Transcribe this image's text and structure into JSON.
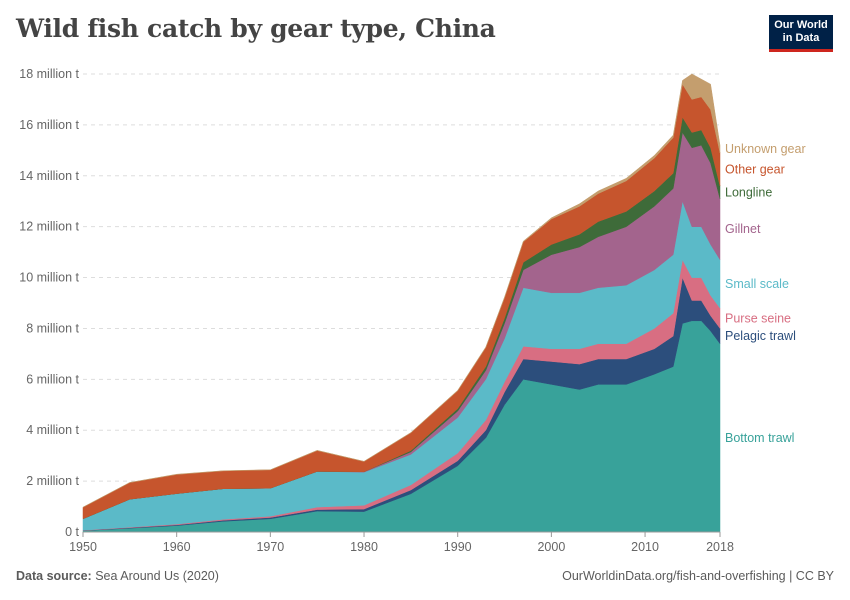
{
  "title": "Wild fish catch by gear type, China",
  "logo": {
    "line1": "Our World",
    "line2": "in Data"
  },
  "footer": {
    "source_label": "Data source:",
    "source_text": "Sea Around Us (2020)",
    "link": "OurWorldinData.org/fish-and-overfishing | CC BY"
  },
  "chart_data": {
    "type": "area",
    "stacked": true,
    "title": "Wild fish catch by gear type, China",
    "xlim": [
      1950,
      2018
    ],
    "ylim": [
      0,
      18000000
    ],
    "y_ticks": [
      0,
      2000000,
      4000000,
      6000000,
      8000000,
      10000000,
      12000000,
      14000000,
      16000000,
      18000000
    ],
    "y_tick_labels": [
      "0 t",
      "2 million t",
      "4 million t",
      "6 million t",
      "8 million t",
      "10 million t",
      "12 million t",
      "14 million t",
      "16 million t",
      "18 million t"
    ],
    "x_ticks": [
      1950,
      1960,
      1970,
      1980,
      1990,
      2000,
      2010,
      2018
    ],
    "x_tick_labels": [
      "1950",
      "1960",
      "1970",
      "1980",
      "1990",
      "2000",
      "2010",
      "2018"
    ],
    "grid": "horizontal dashed",
    "legend": "right, inline labels",
    "x": [
      1950,
      1955,
      1960,
      1965,
      1970,
      1975,
      1980,
      1985,
      1990,
      1993,
      1995,
      1997,
      2000,
      2003,
      2005,
      2008,
      2011,
      2013,
      2014,
      2015,
      2016,
      2017,
      2018
    ],
    "series": [
      {
        "name": "Bottom trawl",
        "color": "#38a29a",
        "values": [
          50000,
          150000,
          250000,
          420000,
          520000,
          820000,
          800000,
          1500000,
          2600000,
          3700000,
          5000000,
          6000000,
          5800000,
          5600000,
          5800000,
          5800000,
          6200000,
          6500000,
          8200000,
          8300000,
          8300000,
          7900000,
          7400000
        ]
      },
      {
        "name": "Pelagic trawl",
        "color": "#2c4e7c",
        "values": [
          10000,
          20000,
          30000,
          40000,
          50000,
          60000,
          100000,
          150000,
          200000,
          300000,
          500000,
          800000,
          900000,
          1000000,
          1000000,
          1000000,
          1000000,
          1200000,
          1800000,
          800000,
          800000,
          600000,
          600000
        ]
      },
      {
        "name": "Purse seine",
        "color": "#d86e82",
        "values": [
          10000,
          20000,
          30000,
          40000,
          50000,
          100000,
          150000,
          200000,
          300000,
          400000,
          400000,
          500000,
          500000,
          600000,
          600000,
          600000,
          800000,
          900000,
          700000,
          900000,
          900000,
          800000,
          800000
        ]
      },
      {
        "name": "Small scale",
        "color": "#5bbac8",
        "values": [
          450000,
          1100000,
          1200000,
          1200000,
          1100000,
          1400000,
          1300000,
          1200000,
          1400000,
          1600000,
          1700000,
          2300000,
          2200000,
          2200000,
          2200000,
          2300000,
          2300000,
          2300000,
          2300000,
          2000000,
          2000000,
          2000000,
          1900000
        ]
      },
      {
        "name": "Gillnet",
        "color": "#a3648d",
        "values": [
          0,
          0,
          0,
          0,
          0,
          0,
          20000,
          100000,
          250000,
          350000,
          600000,
          700000,
          1500000,
          1800000,
          2000000,
          2300000,
          2500000,
          2600000,
          2700000,
          3100000,
          3200000,
          3200000,
          2400000
        ]
      },
      {
        "name": "Longline",
        "color": "#3e6b39",
        "values": [
          0,
          0,
          0,
          0,
          0,
          0,
          0,
          50000,
          100000,
          150000,
          200000,
          300000,
          400000,
          500000,
          600000,
          600000,
          600000,
          600000,
          600000,
          600000,
          600000,
          600000,
          500000
        ]
      },
      {
        "name": "Other gear",
        "color": "#c6552d",
        "values": [
          450000,
          650000,
          750000,
          700000,
          720000,
          820000,
          400000,
          700000,
          700000,
          750000,
          800000,
          800000,
          1000000,
          1100000,
          1100000,
          1200000,
          1300000,
          1400000,
          1300000,
          1300000,
          1300000,
          1500000,
          1300000
        ]
      },
      {
        "name": "Unknown gear",
        "color": "#c49e6e",
        "values": [
          10000,
          10000,
          10000,
          10000,
          10000,
          10000,
          10000,
          10000,
          20000,
          20000,
          30000,
          30000,
          50000,
          100000,
          100000,
          100000,
          100000,
          100000,
          150000,
          1000000,
          700000,
          1000000,
          300000
        ]
      }
    ]
  }
}
